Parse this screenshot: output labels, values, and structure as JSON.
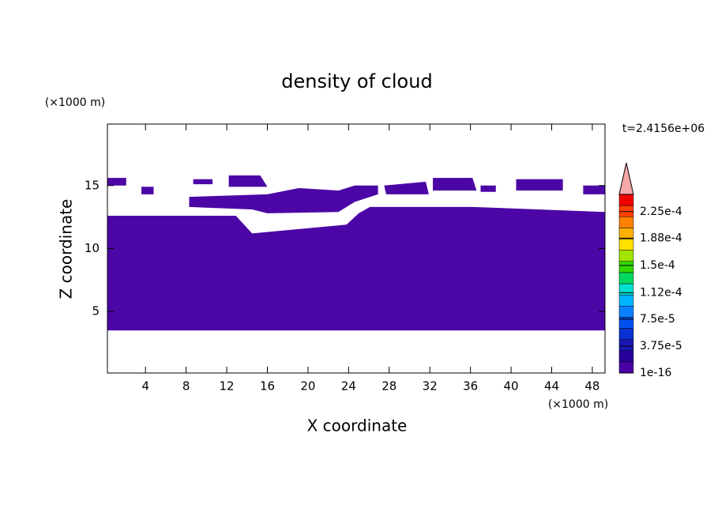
{
  "chart_data": {
    "type": "contour",
    "title": "density of cloud",
    "xlabel": "X coordinate",
    "ylabel": "Z coordinate",
    "xunit": "(×1000 m)",
    "yunit": "(×1000 m)",
    "time_label": "t=2.4156e+06",
    "xlim": [
      0.25,
      49.25
    ],
    "ylim": [
      0.125,
      19.875
    ],
    "xticks": [
      4,
      8,
      12,
      16,
      20,
      24,
      28,
      32,
      36,
      40,
      44,
      48
    ],
    "yticks": [
      5,
      10,
      15
    ],
    "regions": [
      {
        "color": "#4c06a6",
        "x": [
          0.25,
          12.9,
          14.5,
          23.8,
          25.0,
          26.1,
          36.2,
          49.25,
          49.25,
          0.25
        ],
        "z": [
          12.6,
          12.6,
          11.2,
          11.9,
          12.8,
          13.3,
          13.3,
          12.9,
          3.5,
          3.5
        ]
      },
      {
        "color": "#4c06a6",
        "x": [
          0.25,
          2.1,
          2.1,
          0.25
        ],
        "z": [
          15.6,
          15.6,
          15.0,
          15.0
        ]
      },
      {
        "color": "#4c06a6",
        "x": [
          3.6,
          4.8,
          4.8,
          3.6
        ],
        "z": [
          14.9,
          14.9,
          14.3,
          14.3
        ]
      },
      {
        "color": "#4c06a6",
        "x": [
          8.7,
          10.6,
          10.6,
          8.7
        ],
        "z": [
          15.5,
          15.5,
          15.1,
          15.1
        ]
      },
      {
        "color": "#4c06a6",
        "x": [
          12.2,
          15.3,
          16.0,
          12.2
        ],
        "z": [
          15.8,
          15.8,
          14.9,
          14.9
        ]
      },
      {
        "color": "#4c06a6",
        "x": [
          8.3,
          16.0,
          19.1,
          23.0,
          24.6,
          26.9,
          26.9,
          24.6,
          23.0,
          16.0,
          14.5,
          8.3
        ],
        "z": [
          14.1,
          14.3,
          14.8,
          14.6,
          15.0,
          15.0,
          14.3,
          13.7,
          12.9,
          12.8,
          13.1,
          13.3
        ]
      },
      {
        "color": "#4c06a6",
        "x": [
          27.5,
          31.6,
          31.9,
          27.7
        ],
        "z": [
          15.0,
          15.3,
          14.3,
          14.3
        ]
      },
      {
        "color": "#4c06a6",
        "x": [
          32.3,
          36.2,
          36.6,
          32.3
        ],
        "z": [
          15.6,
          15.6,
          14.6,
          14.6
        ]
      },
      {
        "color": "#4c06a6",
        "x": [
          37.0,
          38.5,
          38.5,
          37.0
        ],
        "z": [
          15.0,
          15.0,
          14.5,
          14.5
        ]
      },
      {
        "color": "#4c06a6",
        "x": [
          40.5,
          45.1,
          45.1,
          40.5
        ],
        "z": [
          15.5,
          15.5,
          14.6,
          14.6
        ]
      },
      {
        "color": "#4c06a6",
        "x": [
          47.1,
          49.25,
          49.25,
          47.1
        ],
        "z": [
          15.0,
          15.0,
          14.3,
          14.3
        ]
      }
    ],
    "colorbar": {
      "lim": [
        1e-16,
        0.000249
      ],
      "ticks": [
        {
          "value": 1e-16,
          "label": "1e-16"
        },
        {
          "value": 3.75e-05,
          "label": "3.75e-5"
        },
        {
          "value": 7.5e-05,
          "label": "7.5e-5"
        },
        {
          "value": 0.000112,
          "label": "1.12e-4"
        },
        {
          "value": 0.00015,
          "label": "1.5e-4"
        },
        {
          "value": 0.000188,
          "label": "1.88e-4"
        },
        {
          "value": 0.000225,
          "label": "2.25e-4"
        }
      ],
      "colors": [
        "#4b00a5",
        "#28009a",
        "#1a18b4",
        "#0a32d2",
        "#0050f0",
        "#0a82ff",
        "#00b4ff",
        "#00e0d0",
        "#00d860",
        "#30d800",
        "#a0e400",
        "#ffe000",
        "#ffb000",
        "#ff8000",
        "#ff4000",
        "#f00000"
      ],
      "extend_color": "#f4a8a8"
    }
  }
}
